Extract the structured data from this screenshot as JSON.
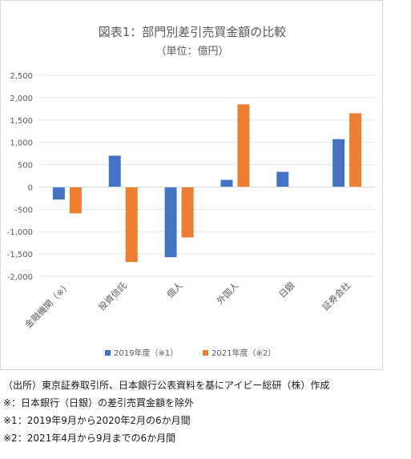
{
  "chart_data": {
    "type": "bar",
    "title": "図表1：部門別差引売買金額の比較",
    "subtitle": "（単位：億円）",
    "categories": [
      "金融機関（※）",
      "投資信託",
      "個人",
      "外国人",
      "日銀",
      "証券会社"
    ],
    "series": [
      {
        "name": "2019年度（※1）",
        "color": "#4472C4",
        "values": [
          -280,
          700,
          -1570,
          160,
          340,
          1070
        ]
      },
      {
        "name": "2021年度（※2）",
        "color": "#ED7D31",
        "values": [
          -590,
          -1680,
          -1130,
          1850,
          null,
          1650
        ]
      }
    ],
    "ylim": [
      -2000,
      2500
    ],
    "yticks": [
      -2000,
      -1500,
      -1000,
      -500,
      0,
      500,
      1000,
      1500,
      2000,
      2500
    ],
    "ytick_labels": [
      "-2,000",
      "-1,500",
      "-1,000",
      "-500",
      "0",
      "500",
      "1,000",
      "1,500",
      "2,000",
      "2,500"
    ],
    "xlabel": "",
    "ylabel": "",
    "grid": true,
    "legend_position": "bottom"
  },
  "notes": [
    "（出所）東京証券取引所、日本銀行公表資料を基にアイビー総研（株）作成",
    "※：日本銀行（日銀）の差引売買金額を除外",
    "※1：2019年9月から2020年2月の6か月間",
    "※2：2021年4月から9月までの6か月間"
  ]
}
